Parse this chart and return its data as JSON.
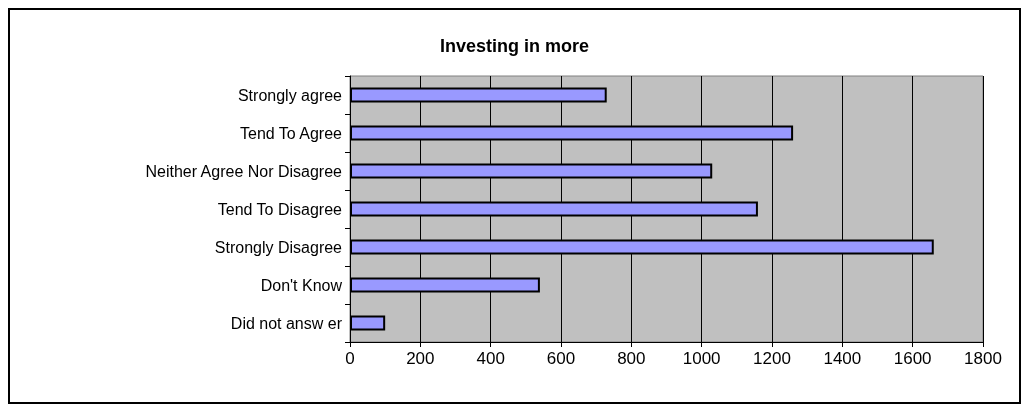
{
  "chart_data": {
    "type": "bar",
    "orientation": "horizontal",
    "title": "Investing in more",
    "categories": [
      "Strongly agree",
      "Tend To Agree",
      "Neither Agree Nor Disagree",
      "Tend To Disagree",
      "Strongly Disagree",
      "Don't Know",
      "Did not answ er"
    ],
    "values": [
      730,
      1260,
      1030,
      1160,
      1660,
      540,
      100
    ],
    "color": "#9999ff",
    "xlim": [
      0,
      1800
    ],
    "xticks": [
      0,
      200,
      400,
      600,
      800,
      1000,
      1200,
      1400,
      1600,
      1800
    ],
    "grid": "x"
  }
}
